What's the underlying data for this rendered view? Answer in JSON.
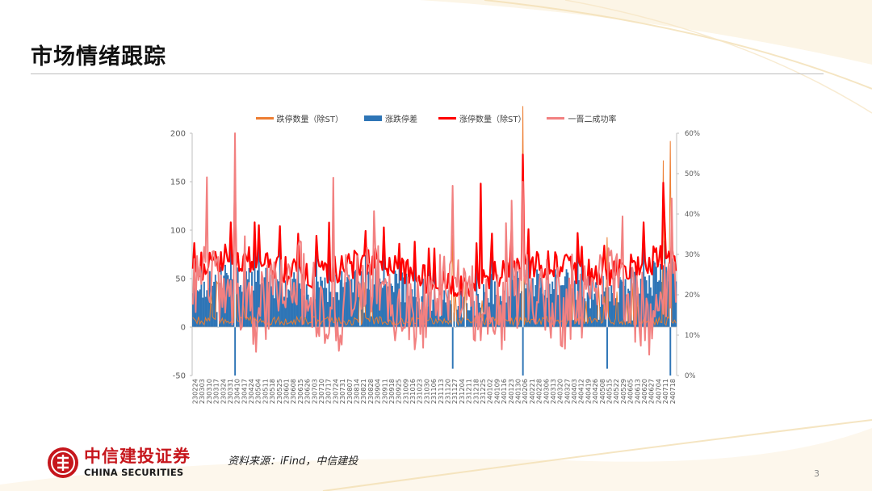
{
  "page": {
    "title": "市场情绪跟踪",
    "source": "资料来源：iFind，中信建投",
    "page_number": "3"
  },
  "logo": {
    "name_cn": "中信建投证券",
    "name_en": "CHINA SECURITIES"
  },
  "colors": {
    "limit_down": "#ED7D31",
    "diff": "#2E75B6",
    "limit_up": "#FF0000",
    "promotion_rate": "#F28080"
  },
  "chart_data": {
    "type": "bar+line",
    "legend_position": "top",
    "series": [
      {
        "name": "跌停数量（除ST）",
        "type": "line",
        "axis": "left"
      },
      {
        "name": "涨跌停差",
        "type": "bar",
        "axis": "left"
      },
      {
        "name": "涨停数量（除ST）",
        "type": "line",
        "axis": "left"
      },
      {
        "name": "一晋二成功率",
        "type": "line",
        "axis": "right"
      }
    ],
    "y_left": {
      "min": -50,
      "max": 200,
      "ticks": [
        "200",
        "150",
        "100",
        "50",
        "0",
        "-50"
      ]
    },
    "y_right": {
      "min": 0,
      "max": 0.6,
      "ticks": [
        "60%",
        "50%",
        "40%",
        "30%",
        "20%",
        "10%",
        "0%"
      ]
    },
    "x_tick_labels": [
      "230224",
      "230303",
      "230310",
      "230317",
      "230324",
      "230331",
      "230410",
      "230417",
      "230424",
      "230504",
      "230511",
      "230518",
      "230525",
      "230601",
      "230608",
      "230615",
      "230626",
      "230703",
      "230710",
      "230717",
      "230724",
      "230731",
      "230807",
      "230814",
      "230821",
      "230828",
      "230904",
      "230911",
      "230918",
      "230925",
      "231009",
      "231016",
      "231023",
      "231030",
      "231106",
      "231113",
      "231120",
      "231127",
      "231204",
      "231211",
      "231218",
      "231225",
      "240102",
      "240109",
      "240116",
      "240123",
      "240130",
      "240206",
      "240221",
      "240228",
      "240306",
      "240313",
      "240320",
      "240327",
      "240403",
      "240412",
      "240419",
      "240426",
      "240508",
      "240515",
      "240522",
      "240529",
      "240605",
      "240613",
      "240620",
      "240627",
      "240704",
      "240711",
      "240718"
    ],
    "approx_points_per_label": 5,
    "limit_up_peaks": [
      {
        "date": "230410",
        "value": 149
      },
      {
        "date": "231225",
        "value": 148
      },
      {
        "date": "240206",
        "value": 178
      },
      {
        "date": "240711",
        "value": 149
      }
    ],
    "diff_extremes": [
      {
        "date": "230410",
        "value": -50
      },
      {
        "date": "231127",
        "value": -43
      },
      {
        "date": "240206",
        "value": -50
      },
      {
        "date": "240515",
        "value": -43
      },
      {
        "date": "240718",
        "value": -50
      }
    ],
    "limit_down_peaks": [
      {
        "date": "240711",
        "value": 172
      },
      {
        "date": "240718",
        "value": 192
      }
    ],
    "promotion_rate_peaks": [
      {
        "date": "230410",
        "value": 0.6
      },
      {
        "date": "230724",
        "value": 0.49
      },
      {
        "date": "231127",
        "value": 0.47
      },
      {
        "date": "240206",
        "value": 0.48
      }
    ]
  }
}
